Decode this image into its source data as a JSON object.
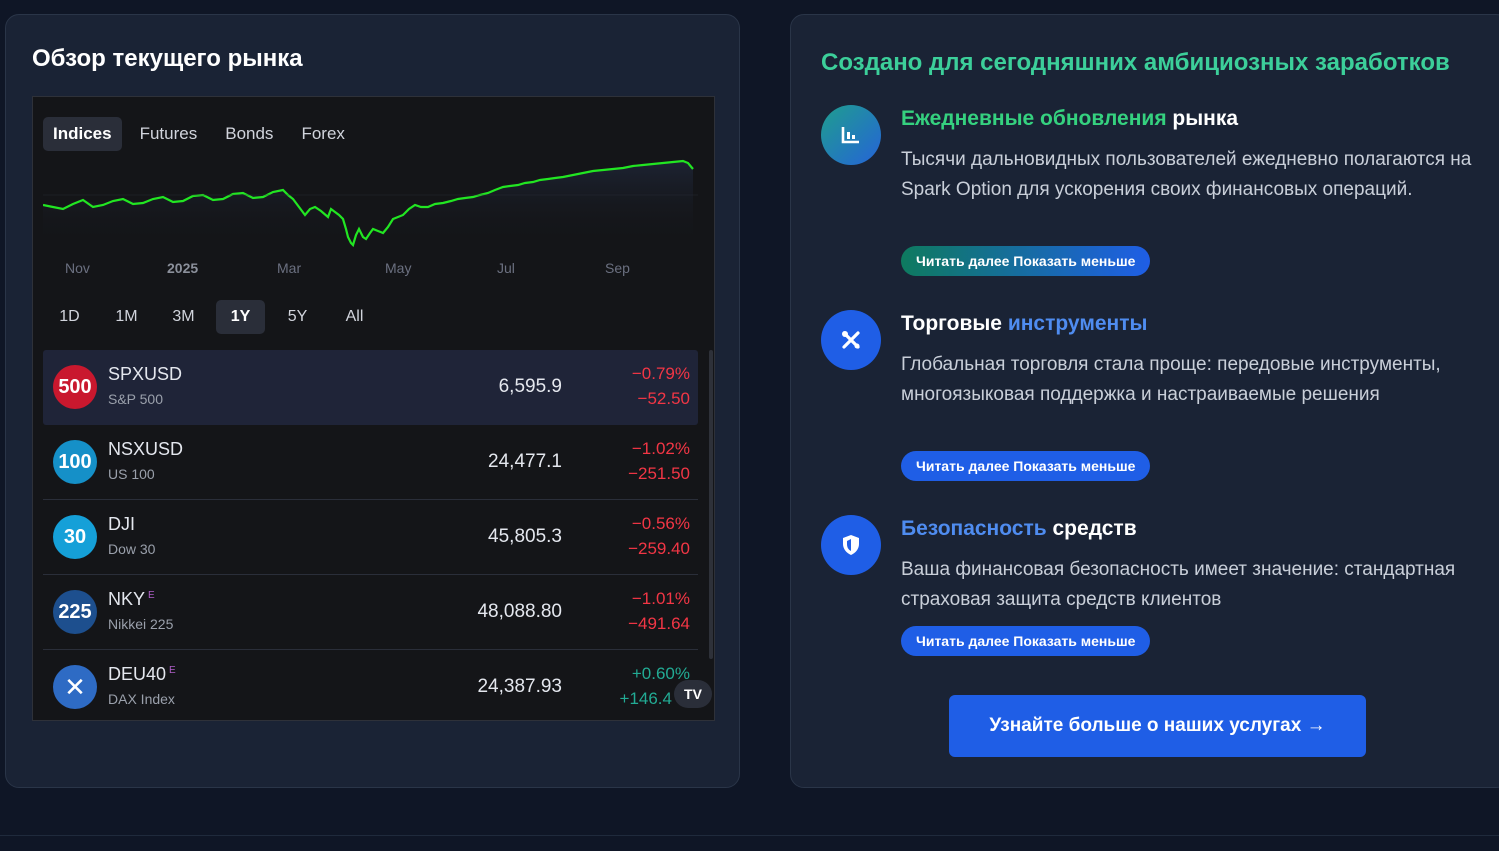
{
  "left": {
    "title": "Обзор текущего рынка",
    "tabs": [
      "Indices",
      "Futures",
      "Bonds",
      "Forex"
    ],
    "active_tab": "Indices",
    "chart_axis": [
      "Nov",
      "2025",
      "Mar",
      "May",
      "Jul",
      "Sep"
    ],
    "ranges": [
      "1D",
      "1M",
      "3M",
      "1Y",
      "5Y",
      "All"
    ],
    "active_range": "1Y",
    "rows": [
      {
        "badge": "500",
        "badge_color": "#c9182e",
        "symbol": "SPXUSD",
        "sup": "",
        "name": "S&P 500",
        "price": "6,595.9",
        "pct": "−0.79%",
        "abs": "−52.50",
        "dir": "neg"
      },
      {
        "badge": "100",
        "badge_color": "#1590c8",
        "symbol": "NSXUSD",
        "sup": "",
        "name": "US 100",
        "price": "24,477.1",
        "pct": "−1.02%",
        "abs": "−251.50",
        "dir": "neg"
      },
      {
        "badge": "30",
        "badge_color": "#15a0d8",
        "symbol": "DJI",
        "sup": "",
        "name": "Dow 30",
        "price": "45,805.3",
        "pct": "−0.56%",
        "abs": "−259.40",
        "dir": "neg"
      },
      {
        "badge": "225",
        "badge_color": "#1d4f8e",
        "symbol": "NKY",
        "sup": "E",
        "name": "Nikkei 225",
        "price": "48,088.80",
        "pct": "−1.01%",
        "abs": "−491.64",
        "dir": "neg"
      },
      {
        "badge": "✕",
        "badge_color": "#2e6bc4",
        "symbol": "DEU40",
        "sup": "E",
        "name": "DAX Index",
        "price": "24,387.93",
        "pct": "+0.60%",
        "abs": "+146.4",
        "dir": "pos"
      }
    ],
    "tv_logo": "TV"
  },
  "right": {
    "title": "Создано для сегодняшних амбициозных заработков",
    "features": [
      {
        "title_a": "Ежедневные обновления",
        "title_b": " рынка",
        "desc": "Тысячи дальновидных пользователей ежедневно полагаются на Spark Option для ускорения своих финансовых операций.",
        "btn": "Читать далее Показать меньше",
        "icon": "chart-icon"
      },
      {
        "title_a": "Торговые ",
        "title_b": "инструменты",
        "desc": "Глобальная торговля стала проще: передовые инструменты, многоязыковая поддержка и настраиваемые решения",
        "btn": "Читать далее Показать меньше",
        "icon": "tools-icon"
      },
      {
        "title_a": "Безопасность",
        "title_b": " средств",
        "desc": "Ваша финансовая безопасность имеет значение: стандартная страховая защита средств клиентов",
        "btn": "Читать далее Показать меньше",
        "icon": "shield-icon"
      }
    ],
    "cta": "Узнайте больше о наших услугах →"
  }
}
